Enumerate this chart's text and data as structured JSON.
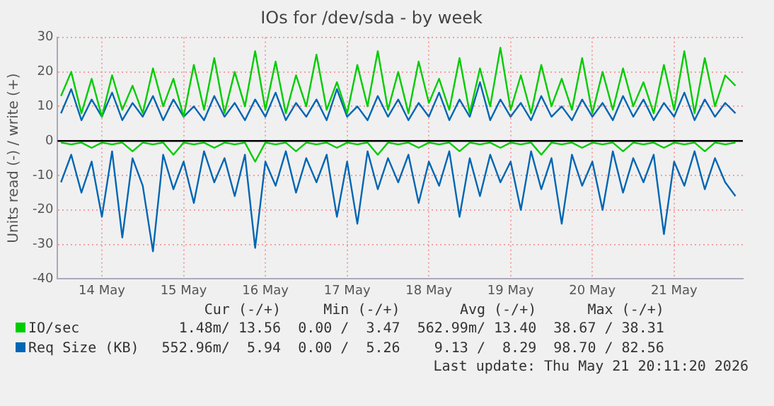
{
  "chart_data": {
    "type": "line",
    "title": "IOs for /dev/sda - by week",
    "ylabel": "Units read (-) / write (+)",
    "x": [
      "2026-05-13T12:00",
      "2026-05-13T15:00",
      "2026-05-13T18:00",
      "2026-05-13T21:00",
      "2026-05-14T00:00",
      "2026-05-14T03:00",
      "2026-05-14T06:00",
      "2026-05-14T09:00",
      "2026-05-14T12:00",
      "2026-05-14T15:00",
      "2026-05-14T18:00",
      "2026-05-14T21:00",
      "2026-05-15T00:00",
      "2026-05-15T03:00",
      "2026-05-15T06:00",
      "2026-05-15T09:00",
      "2026-05-15T12:00",
      "2026-05-15T15:00",
      "2026-05-15T18:00",
      "2026-05-15T21:00",
      "2026-05-16T00:00",
      "2026-05-16T03:00",
      "2026-05-16T06:00",
      "2026-05-16T09:00",
      "2026-05-16T12:00",
      "2026-05-16T15:00",
      "2026-05-16T18:00",
      "2026-05-16T21:00",
      "2026-05-17T00:00",
      "2026-05-17T03:00",
      "2026-05-17T06:00",
      "2026-05-17T09:00",
      "2026-05-17T12:00",
      "2026-05-17T15:00",
      "2026-05-17T18:00",
      "2026-05-17T21:00",
      "2026-05-18T00:00",
      "2026-05-18T03:00",
      "2026-05-18T06:00",
      "2026-05-18T09:00",
      "2026-05-18T12:00",
      "2026-05-18T15:00",
      "2026-05-18T18:00",
      "2026-05-18T21:00",
      "2026-05-19T00:00",
      "2026-05-19T03:00",
      "2026-05-19T06:00",
      "2026-05-19T09:00",
      "2026-05-19T12:00",
      "2026-05-19T15:00",
      "2026-05-19T18:00",
      "2026-05-19T21:00",
      "2026-05-20T00:00",
      "2026-05-20T03:00",
      "2026-05-20T06:00",
      "2026-05-20T09:00",
      "2026-05-20T12:00",
      "2026-05-20T15:00",
      "2026-05-20T18:00",
      "2026-05-20T21:00",
      "2026-05-21T00:00",
      "2026-05-21T03:00",
      "2026-05-21T06:00",
      "2026-05-21T09:00",
      "2026-05-21T12:00",
      "2026-05-21T15:00",
      "2026-05-21T18:00"
    ],
    "series": [
      {
        "name": "IO/sec",
        "color": "#00cc00",
        "values": [
          13,
          20,
          8,
          18,
          7,
          19,
          9,
          16,
          8,
          21,
          10,
          18,
          7,
          22,
          9,
          24,
          8,
          20,
          10,
          26,
          9,
          23,
          8,
          19,
          10,
          25,
          9,
          17,
          8,
          22,
          10,
          26,
          9,
          20,
          8,
          23,
          11,
          18,
          9,
          24,
          8,
          21,
          10,
          27,
          9,
          19,
          8,
          22,
          10,
          18,
          9,
          24,
          8,
          20,
          9,
          21,
          10,
          17,
          8,
          22,
          9,
          26,
          8,
          24,
          10,
          19,
          16
        ]
      },
      {
        "name": "Req Size (KB)",
        "color": "#0066b3",
        "values": [
          8,
          15,
          6,
          12,
          7,
          14,
          6,
          11,
          7,
          13,
          6,
          12,
          7,
          10,
          6,
          13,
          7,
          11,
          6,
          12,
          7,
          14,
          6,
          11,
          7,
          12,
          6,
          15,
          7,
          10,
          6,
          13,
          7,
          12,
          6,
          11,
          7,
          14,
          6,
          12,
          7,
          17,
          6,
          12,
          7,
          11,
          6,
          13,
          7,
          10,
          6,
          12,
          7,
          11,
          6,
          13,
          7,
          12,
          6,
          11,
          7,
          14,
          6,
          12,
          7,
          11,
          8
        ]
      },
      {
        "color": "#00cc00",
        "values": [
          -0.5,
          -1,
          -0.5,
          -2,
          -0.5,
          -1,
          -0.5,
          -3,
          -0.5,
          -1,
          -0.5,
          -4,
          -0.5,
          -1,
          -0.5,
          -2,
          -0.5,
          -1,
          -0.5,
          -6,
          -0.5,
          -1,
          -0.5,
          -3,
          -0.5,
          -1,
          -0.5,
          -2,
          -0.5,
          -1,
          -0.5,
          -4,
          -0.5,
          -1,
          -0.5,
          -2,
          -0.5,
          -1,
          -0.5,
          -3,
          -0.5,
          -1,
          -0.5,
          -2,
          -0.5,
          -1,
          -0.5,
          -4,
          -0.5,
          -1,
          -0.5,
          -2,
          -0.5,
          -1,
          -0.5,
          -3,
          -0.5,
          -1,
          -0.5,
          -2,
          -0.5,
          -1,
          -0.5,
          -3,
          -0.5,
          -1,
          -0.5
        ]
      },
      {
        "color": "#0066b3",
        "values": [
          -12,
          -4,
          -15,
          -6,
          -22,
          -3,
          -28,
          -5,
          -13,
          -32,
          -4,
          -14,
          -6,
          -18,
          -3,
          -12,
          -5,
          -16,
          -4,
          -31,
          -6,
          -13,
          -3,
          -15,
          -5,
          -12,
          -4,
          -22,
          -6,
          -24,
          -3,
          -14,
          -5,
          -12,
          -4,
          -18,
          -6,
          -13,
          -3,
          -22,
          -5,
          -16,
          -4,
          -12,
          -6,
          -20,
          -3,
          -14,
          -5,
          -24,
          -4,
          -13,
          -6,
          -20,
          -3,
          -15,
          -5,
          -12,
          -4,
          -27,
          -6,
          -13,
          -3,
          -14,
          -5,
          -12,
          -16
        ]
      }
    ],
    "xlim": [
      "2026-05-13T11:00",
      "2026-05-21T20:11"
    ],
    "xticks": [
      {
        "value": "2026-05-14",
        "label": "14 May"
      },
      {
        "value": "2026-05-15",
        "label": "15 May"
      },
      {
        "value": "2026-05-16",
        "label": "16 May"
      },
      {
        "value": "2026-05-17",
        "label": "17 May"
      },
      {
        "value": "2026-05-18",
        "label": "18 May"
      },
      {
        "value": "2026-05-19",
        "label": "19 May"
      },
      {
        "value": "2026-05-20",
        "label": "20 May"
      },
      {
        "value": "2026-05-21",
        "label": "21 May"
      }
    ],
    "ylim": [
      -40,
      30
    ],
    "yticks": [
      -40,
      -30,
      -20,
      -10,
      0,
      10,
      20,
      30
    ],
    "ref_lines": [
      {
        "axis": "y",
        "value": 0,
        "color": "#000000"
      }
    ],
    "grid": true,
    "legend": "bottom",
    "marker": "none",
    "line_style": "solid",
    "annotations": [
      "Cur (-/+)",
      "Min (-/+)",
      "Avg (-/+)",
      "Max (-/+)",
      "1.48m/ 13.56",
      "0.00 /  3.47",
      "562.99m/ 13.40",
      "38.67 / 38.31",
      "552.96m/  5.94",
      "0.00 /  5.26",
      "9.13 /  8.29",
      "98.70 / 82.56",
      "Last update: Thu May 21 20:11:20 2026"
    ]
  }
}
